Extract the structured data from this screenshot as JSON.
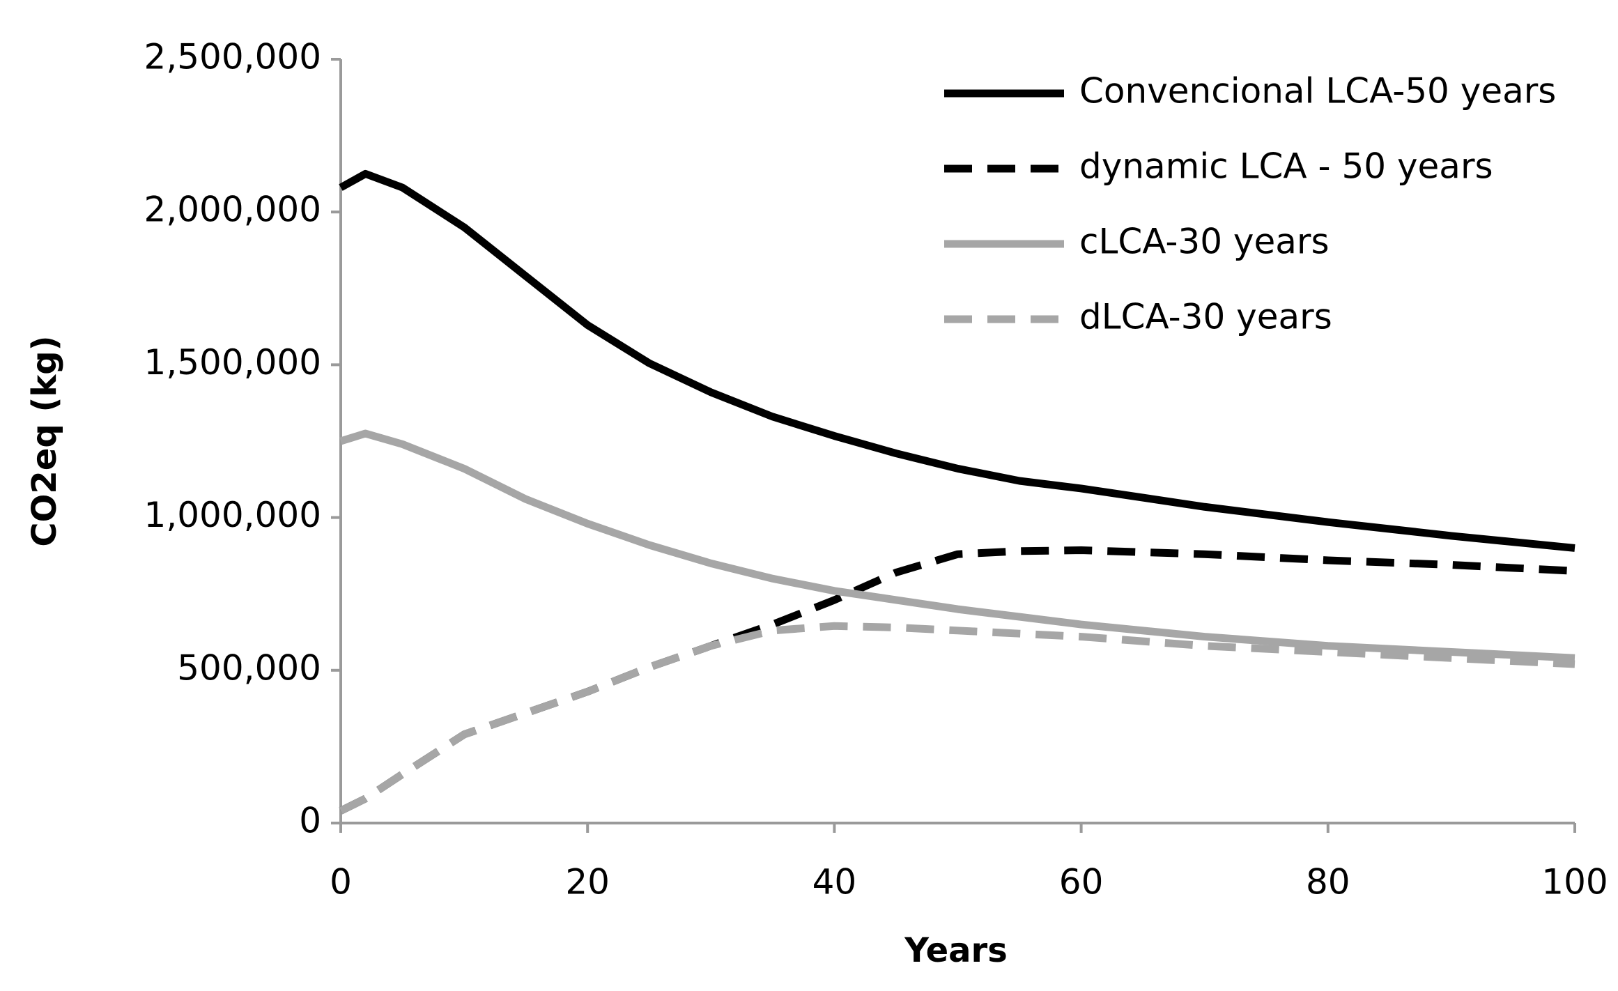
{
  "chart_data": {
    "type": "line",
    "x_label": "Years",
    "y_label": "CO2eq (kg)",
    "x": [
      0,
      2,
      5,
      10,
      15,
      20,
      25,
      30,
      35,
      40,
      45,
      50,
      55,
      60,
      70,
      80,
      90,
      100
    ],
    "series": [
      {
        "name": "Convencional LCA-50 years",
        "color": "#000000",
        "dash": "solid",
        "values": [
          2080000,
          2125000,
          2080000,
          1950000,
          1790000,
          1630000,
          1505000,
          1410000,
          1330000,
          1267000,
          1210000,
          1160000,
          1120000,
          1095000,
          1035000,
          985000,
          940000,
          900000
        ]
      },
      {
        "name": "dynamic LCA - 50 years",
        "color": "#000000",
        "dash": "dashed",
        "values": [
          40000,
          80000,
          160000,
          290000,
          360000,
          430000,
          510000,
          580000,
          650000,
          730000,
          820000,
          880000,
          890000,
          893000,
          880000,
          860000,
          845000,
          825000
        ]
      },
      {
        "name": "cLCA-30 years",
        "color": "#a6a6a6",
        "dash": "solid",
        "values": [
          1250000,
          1275000,
          1240000,
          1160000,
          1060000,
          980000,
          910000,
          850000,
          800000,
          760000,
          730000,
          700000,
          675000,
          650000,
          610000,
          580000,
          560000,
          540000
        ]
      },
      {
        "name": "dLCA-30 years",
        "color": "#a6a6a6",
        "dash": "dashed",
        "values": [
          40000,
          80000,
          160000,
          290000,
          360000,
          430000,
          510000,
          580000,
          630000,
          645000,
          640000,
          630000,
          620000,
          610000,
          580000,
          560000,
          540000,
          520000
        ]
      }
    ],
    "xlim": [
      0,
      100
    ],
    "xticks": [
      0,
      20,
      40,
      60,
      80,
      100
    ],
    "ylim": [
      0,
      2500000
    ],
    "yticks": [
      0,
      {
        "value": 500000,
        "label": "500,000"
      },
      {
        "value": 1000000,
        "label": "1,000,000"
      },
      {
        "value": 1500000,
        "label": "1,500,000"
      },
      {
        "value": 2000000,
        "label": "2,000,000"
      },
      {
        "value": 2500000,
        "label": "2,500,000"
      }
    ],
    "grid": false,
    "legend": "upper right"
  }
}
